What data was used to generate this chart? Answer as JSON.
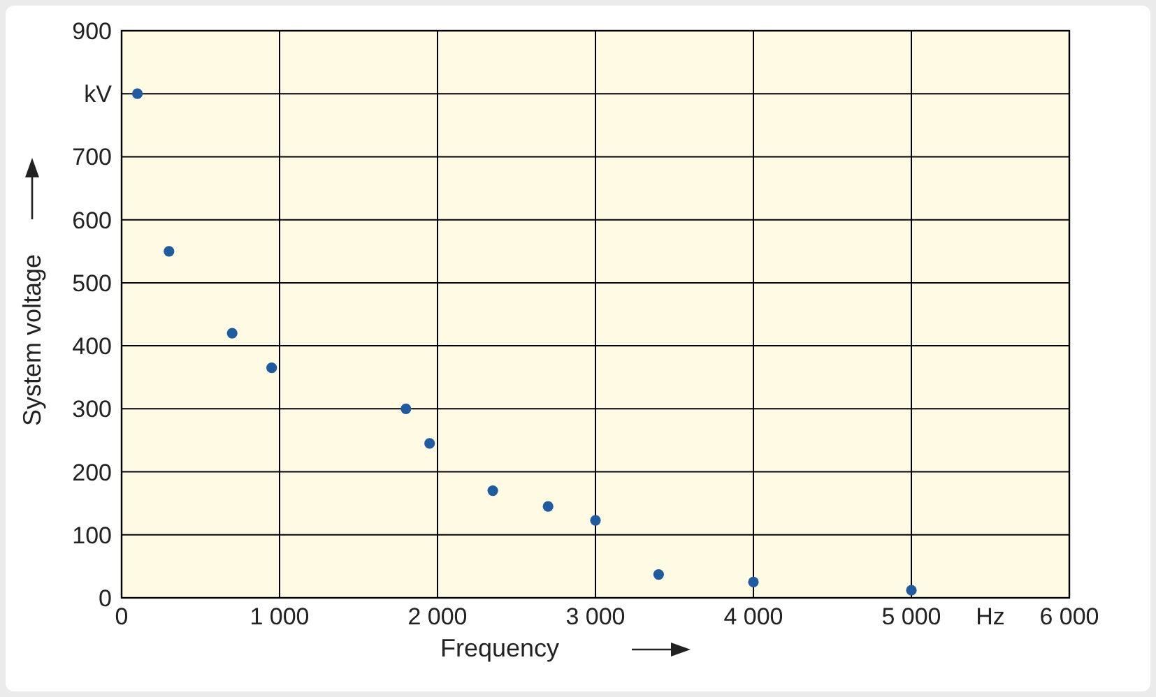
{
  "chart_data": {
    "type": "scatter",
    "xlabel": "Frequency",
    "ylabel": "System voltage",
    "x": [
      100,
      300,
      700,
      950,
      1800,
      1950,
      2350,
      2700,
      3000,
      3400,
      4000,
      5000
    ],
    "values": [
      800,
      550,
      420,
      365,
      300,
      245,
      170,
      145,
      123,
      37,
      25,
      12
    ],
    "color": "#1f5b9e",
    "marker": "circle",
    "grid": true,
    "xlim": [
      0,
      6000
    ],
    "xticks": [
      0,
      {
        "value": 1000,
        "label": "1 000"
      },
      {
        "value": 2000,
        "label": "2 000"
      },
      {
        "value": 3000,
        "label": "3 000"
      },
      {
        "value": 4000,
        "label": "4 000"
      },
      {
        "value": 5000,
        "label": "5 000"
      },
      {
        "value": 6000,
        "label": "6 000"
      }
    ],
    "ylim": [
      0,
      900
    ],
    "yticks": [
      0,
      100,
      200,
      300,
      400,
      500,
      600,
      700,
      {
        "value": 800,
        "label": "kV"
      },
      900
    ],
    "annotations": [
      "Hz"
    ]
  }
}
